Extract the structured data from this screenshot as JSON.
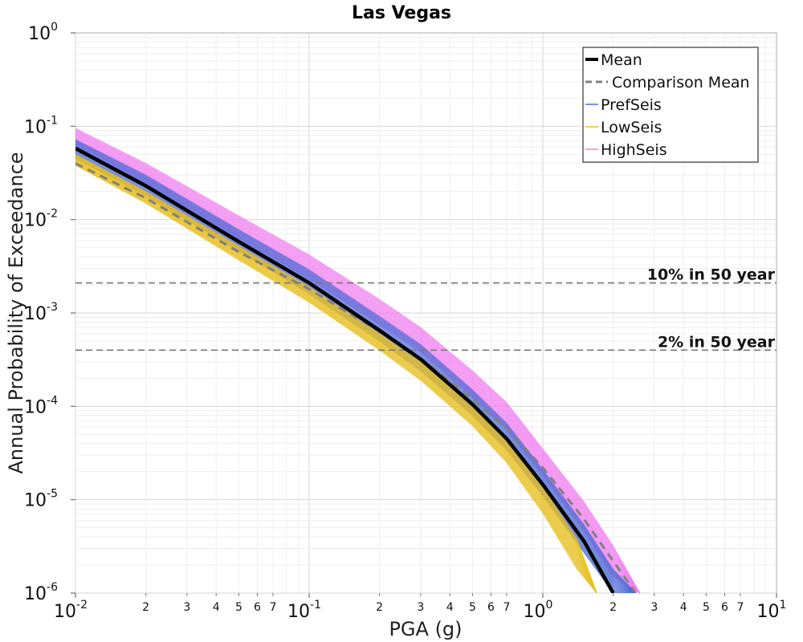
{
  "chart_data": {
    "type": "line",
    "title": "Las Vegas",
    "xlabel": "PGA (g)",
    "ylabel": "Annual Probability of Exceedance",
    "x_scale": "log",
    "y_scale": "log",
    "xlim": [
      0.01,
      10
    ],
    "ylim": [
      1e-06,
      1
    ],
    "grid": true,
    "legend_position": "top-right",
    "x_major_ticks": [
      {
        "base": "10",
        "exp": "-2",
        "value": 0.01
      },
      {
        "base": "10",
        "exp": "-1",
        "value": 0.1
      },
      {
        "base": "10",
        "exp": "0",
        "value": 1
      },
      {
        "base": "10",
        "exp": "1",
        "value": 10
      }
    ],
    "x_minor_tick_labels": [
      "2",
      "3",
      "4",
      "5",
      "6",
      "7"
    ],
    "y_major_ticks": [
      {
        "base": "10",
        "exp": "0",
        "value": 1
      },
      {
        "base": "10",
        "exp": "-1",
        "value": 0.1
      },
      {
        "base": "10",
        "exp": "-2",
        "value": 0.01
      },
      {
        "base": "10",
        "exp": "-3",
        "value": 0.001
      },
      {
        "base": "10",
        "exp": "-4",
        "value": 0.0001
      },
      {
        "base": "10",
        "exp": "-5",
        "value": 1e-05
      },
      {
        "base": "10",
        "exp": "-6",
        "value": 1e-06
      }
    ],
    "reference_lines": [
      {
        "label": "10% in 50 year",
        "y": 0.0021
      },
      {
        "label": "2% in 50 year",
        "y": 0.0004
      }
    ],
    "legend": [
      {
        "name": "Mean",
        "color": "#000000",
        "style": "solid-thick"
      },
      {
        "name": "Comparison Mean",
        "color": "#808080",
        "style": "dashed"
      },
      {
        "name": "PrefSeis",
        "color": "#4d6bd6",
        "style": "solid-thin"
      },
      {
        "name": "LowSeis",
        "color": "#e8c020",
        "style": "solid-thin"
      },
      {
        "name": "HighSeis",
        "color": "#f07cf0",
        "style": "solid-thin"
      }
    ],
    "series": [
      {
        "name": "Mean",
        "x": [
          0.01,
          0.02,
          0.05,
          0.1,
          0.2,
          0.3,
          0.5,
          0.7,
          1.0,
          1.5,
          2.0
        ],
        "y": [
          0.058,
          0.023,
          0.0058,
          0.0021,
          0.00065,
          0.00032,
          0.000105,
          4.5e-05,
          1.45e-05,
          3.6e-06,
          1e-06
        ]
      },
      {
        "name": "Comparison Mean",
        "x": [
          0.01,
          0.02,
          0.05,
          0.1,
          0.2,
          0.3,
          0.5,
          0.7,
          1.0,
          1.5,
          2.0,
          2.5
        ],
        "y": [
          0.04,
          0.017,
          0.0045,
          0.0018,
          0.00063,
          0.00033,
          0.00012,
          5.8e-05,
          2.2e-05,
          6.2e-06,
          2.2e-06,
          1e-06
        ]
      },
      {
        "name": "HighSeis",
        "color": "#f07cf0",
        "x": [
          0.01,
          0.02,
          0.05,
          0.1,
          0.2,
          0.3,
          0.5,
          0.7,
          1.0,
          1.5,
          2.0,
          2.6
        ],
        "y_upper": [
          0.095,
          0.04,
          0.011,
          0.0042,
          0.0014,
          0.0007,
          0.00024,
          0.00011,
          3.5e-05,
          9.5e-06,
          3.2e-06,
          1e-06
        ],
        "y_lower": [
          0.058,
          0.024,
          0.0062,
          0.0023,
          0.00075,
          0.00038,
          0.000125,
          5.6e-05,
          1.8e-05,
          4.6e-06,
          1.5e-06,
          1e-06
        ]
      },
      {
        "name": "PrefSeis",
        "color": "#4d6bd6",
        "x": [
          0.01,
          0.02,
          0.05,
          0.1,
          0.2,
          0.3,
          0.5,
          0.7,
          1.0,
          1.5,
          2.0,
          2.5
        ],
        "y_upper": [
          0.072,
          0.03,
          0.0078,
          0.0029,
          0.00092,
          0.00046,
          0.00015,
          6.6e-05,
          2.1e-05,
          5.4e-06,
          1.8e-06,
          1e-06
        ],
        "y_lower": [
          0.045,
          0.018,
          0.0046,
          0.0016,
          0.0005,
          0.00024,
          8e-05,
          3.4e-05,
          1.1e-05,
          2.7e-06,
          1e-06,
          1e-06
        ]
      },
      {
        "name": "LowSeis",
        "color": "#e8c020",
        "x": [
          0.01,
          0.02,
          0.05,
          0.1,
          0.2,
          0.3,
          0.5,
          0.7,
          1.0,
          1.4,
          1.7
        ],
        "y_upper": [
          0.05,
          0.02,
          0.0052,
          0.0019,
          0.0006,
          0.0003,
          0.0001,
          4.3e-05,
          1.35e-05,
          3.8e-06,
          1e-06
        ],
        "y_lower": [
          0.038,
          0.015,
          0.0037,
          0.0013,
          0.0004,
          0.00019,
          6.2e-05,
          2.5e-05,
          7.2e-06,
          1.8e-06,
          1e-06
        ]
      }
    ]
  }
}
